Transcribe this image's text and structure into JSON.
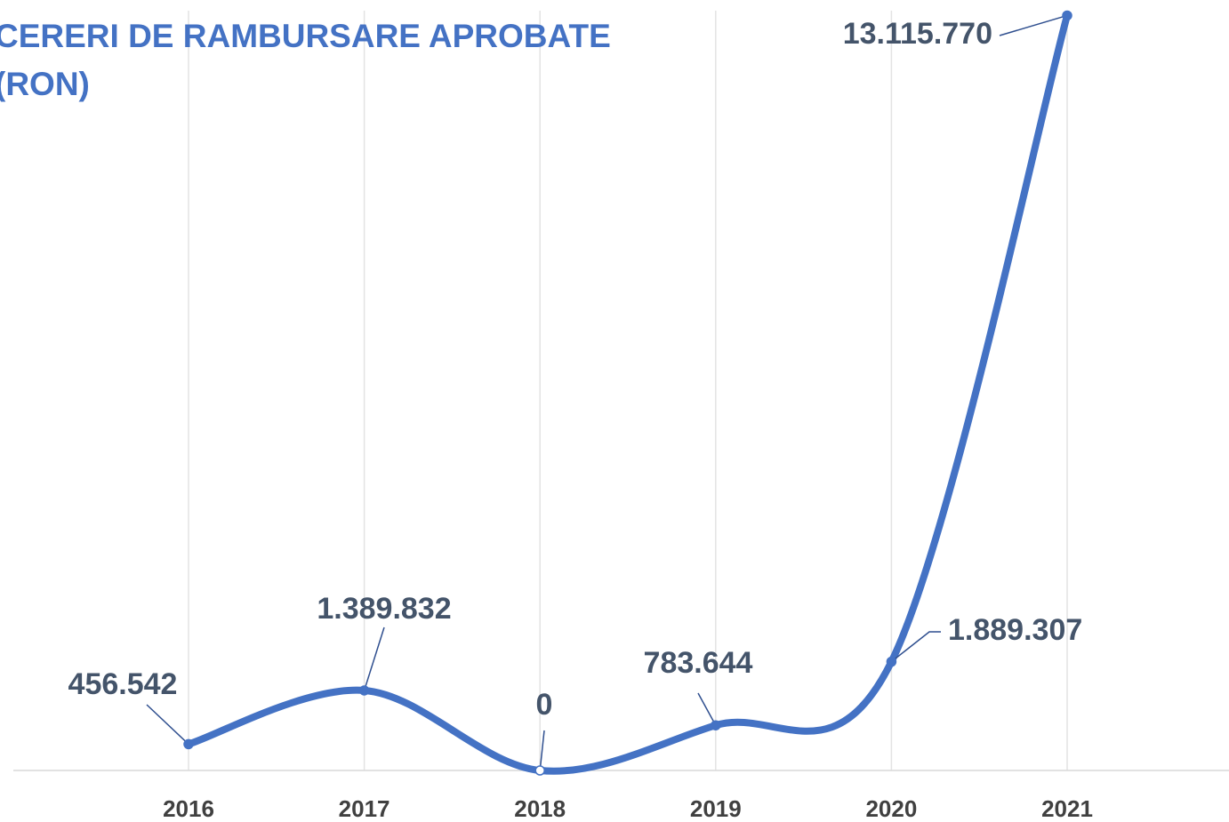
{
  "chart_data": {
    "type": "line",
    "title": "CERERI DE RAMBURSARE APROBATE (RON)",
    "categories": [
      "2016",
      "2017",
      "2018",
      "2019",
      "2020",
      "2021"
    ],
    "series": [
      {
        "name": "CERERI DE RAMBURSARE APROBATE (RON)",
        "color": "#4472c4",
        "values": [
          456542,
          1389832,
          0,
          783644,
          1889307,
          13115770
        ],
        "value_labels": [
          "456.542",
          "1.389.832",
          "0",
          "783.644",
          "1.889.307",
          "13.115.770"
        ]
      }
    ],
    "ylim": [
      0,
      13200000
    ],
    "grid": true
  }
}
